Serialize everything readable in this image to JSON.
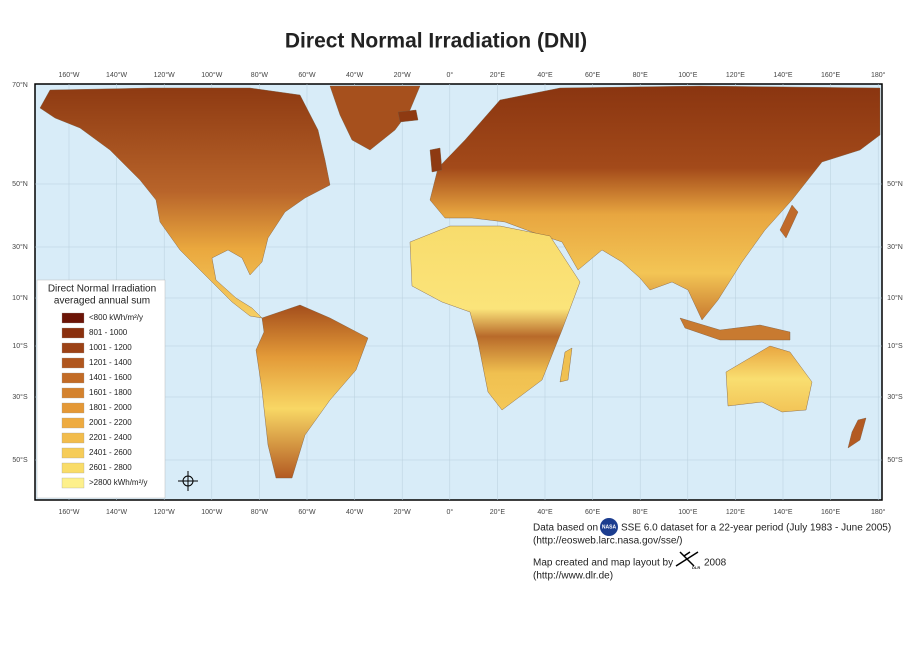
{
  "title": "Direct Normal Irradiation (DNI)",
  "longitude_labels": [
    "160°W",
    "140°W",
    "120°W",
    "100°W",
    "80°W",
    "60°W",
    "40°W",
    "20°W",
    "0°",
    "20°E",
    "40°E",
    "60°E",
    "80°E",
    "100°E",
    "120°E",
    "140°E",
    "160°E",
    "180°"
  ],
  "latitude_labels": [
    "70°N",
    "50°N",
    "30°N",
    "10°N",
    "10°S",
    "30°S",
    "50°S"
  ],
  "legend": {
    "title": [
      "Direct Normal Irradiation",
      "averaged annual sum"
    ],
    "items": [
      {
        "label": "<800 kWh/m²/y",
        "color": "#6b1406"
      },
      {
        "label": "801 - 1000",
        "color": "#8a300e"
      },
      {
        "label": "1001 - 1200",
        "color": "#9c4216"
      },
      {
        "label": "1201 - 1400",
        "color": "#b0561e"
      },
      {
        "label": "1401 - 1600",
        "color": "#c26b26"
      },
      {
        "label": "1601 - 1800",
        "color": "#d4822e"
      },
      {
        "label": "1801 - 2000",
        "color": "#e49836"
      },
      {
        "label": "2001 - 2200",
        "color": "#eeab40"
      },
      {
        "label": "2201 - 2400",
        "color": "#f2bc4c"
      },
      {
        "label": "2401 - 2600",
        "color": "#f6cc58"
      },
      {
        "label": "2601 - 2800",
        "color": "#f9dc68"
      },
      {
        "label": ">2800 kWh/m²/y",
        "color": "#fdf08c"
      }
    ]
  },
  "credits": {
    "data_prefix": "Data based on",
    "nasa_logo": "NASA",
    "data_source": "SSE 6.0 dataset for a 22-year period (July 1983 - June 2005)",
    "data_url": "(http://eosweb.larc.nasa.gov/sse/)",
    "layout_prefix": "Map created and map layout by",
    "dlr_logo": "DLR",
    "year": "2008",
    "layout_url": "(http://www.dlr.de)"
  }
}
